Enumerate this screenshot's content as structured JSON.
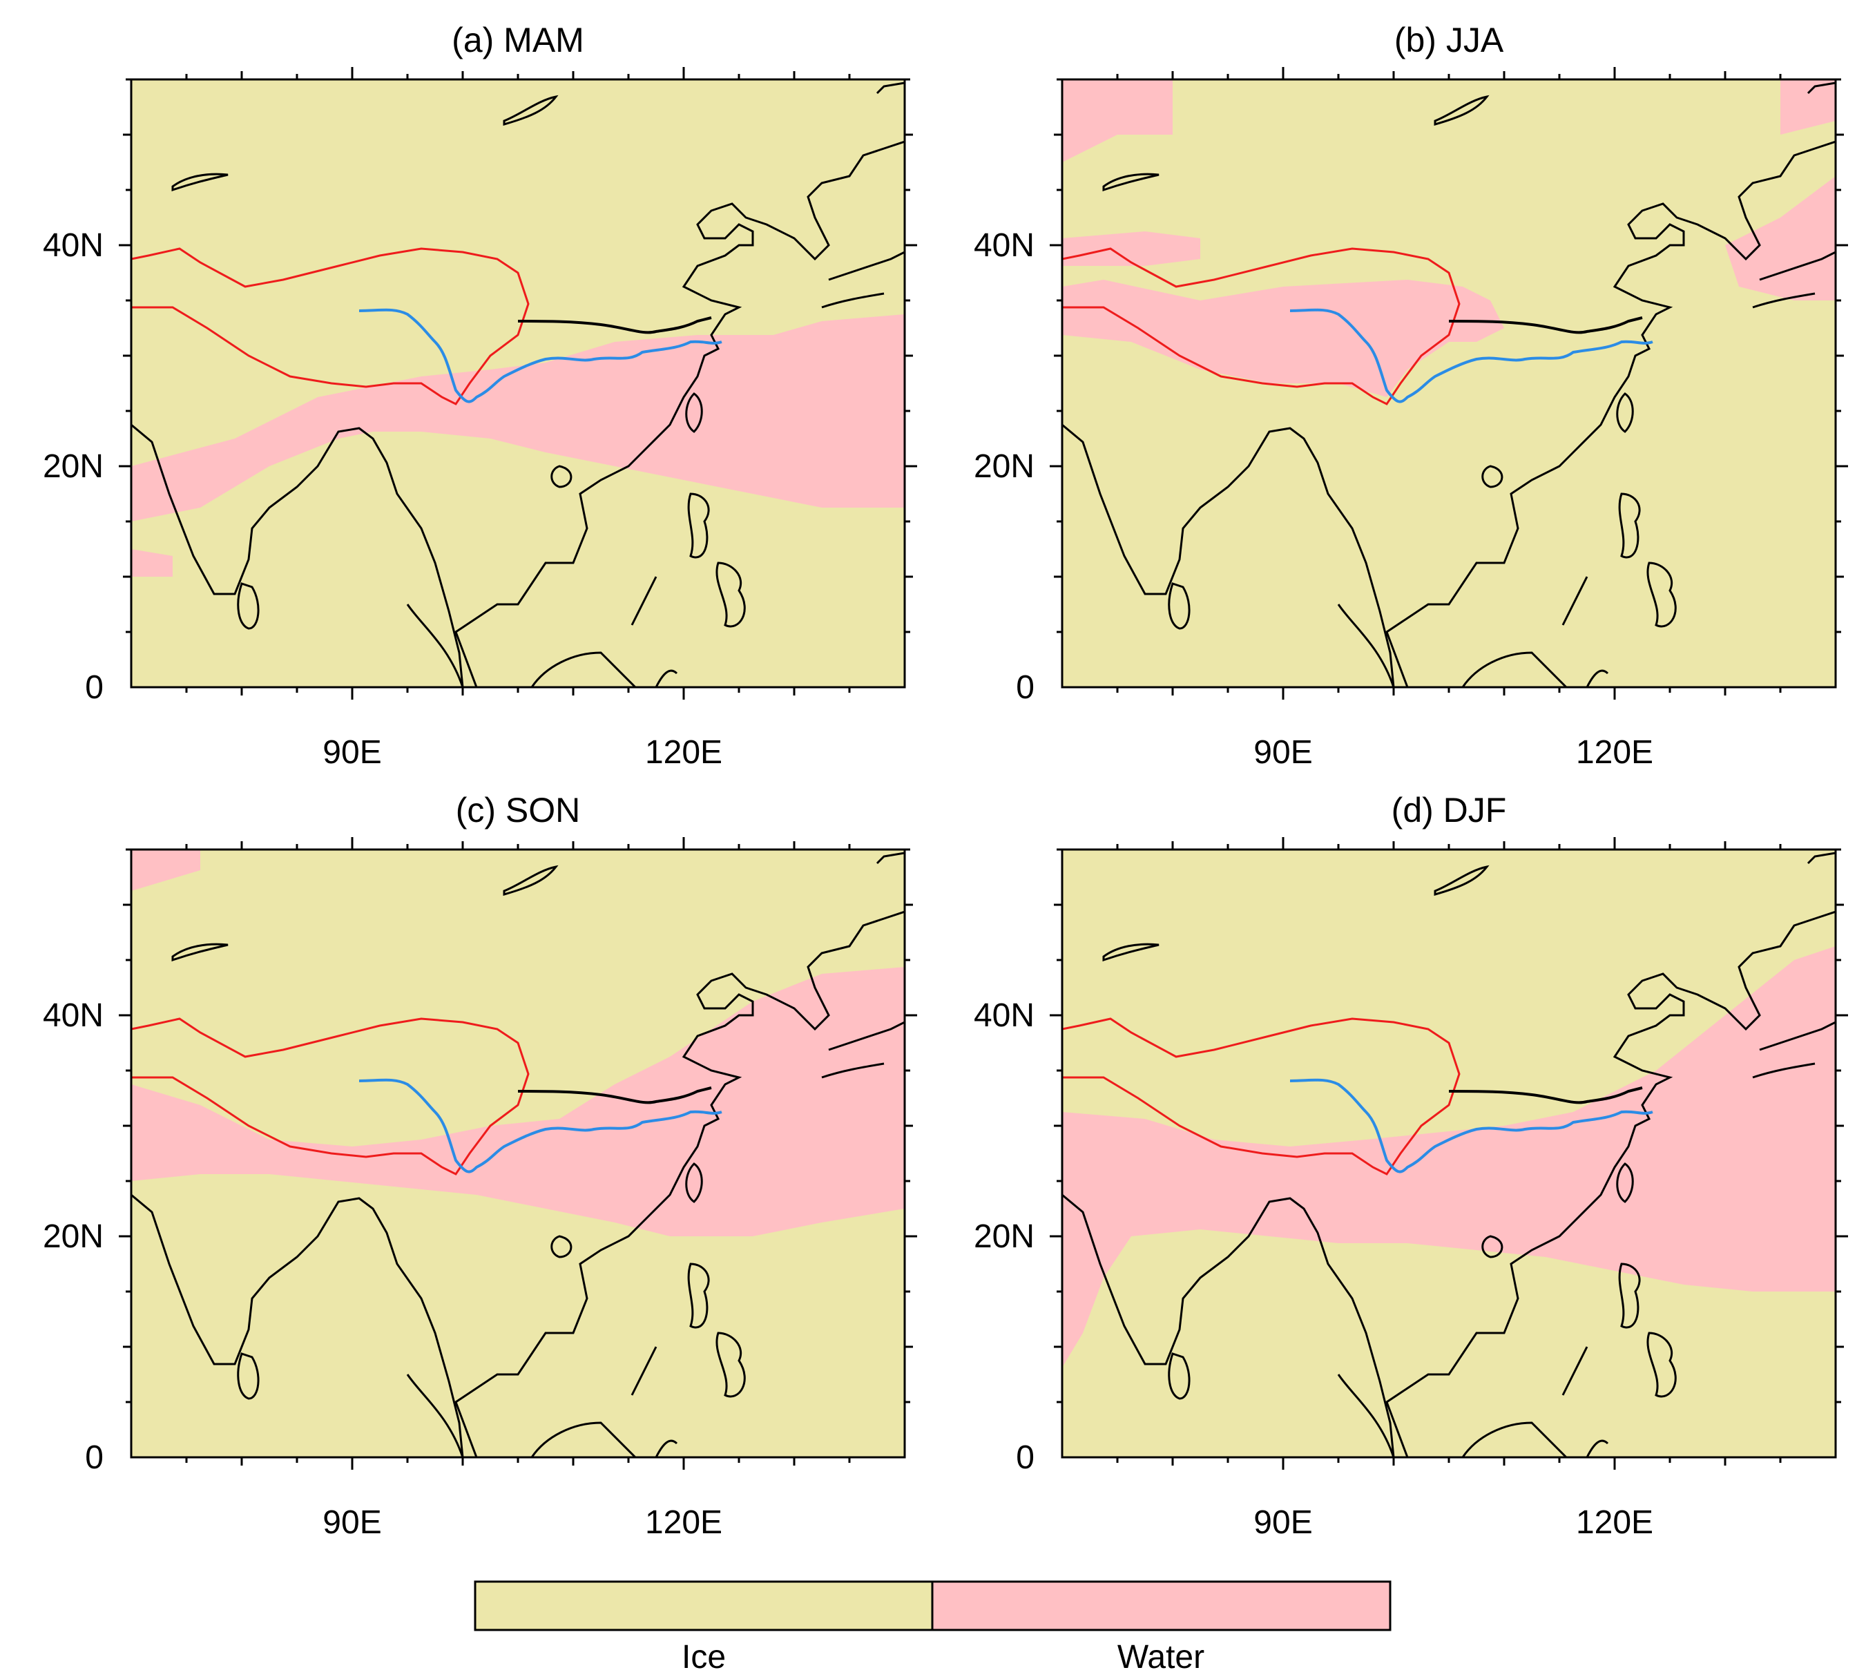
{
  "figure": {
    "panels": [
      {
        "id": "mam",
        "title": "(a) MAM"
      },
      {
        "id": "jja",
        "title": "(b) JJA"
      },
      {
        "id": "son",
        "title": "(c) SON"
      },
      {
        "id": "djf",
        "title": "(d) DJF"
      }
    ],
    "axes": {
      "x_ticks": [
        {
          "lon": 90,
          "label": "90E"
        },
        {
          "lon": 120,
          "label": "120E"
        }
      ],
      "y_ticks": [
        {
          "lat": 0,
          "label": "0"
        },
        {
          "lat": 20,
          "label": "20N"
        },
        {
          "lat": 40,
          "label": "40N"
        }
      ],
      "xlim": [
        70,
        140
      ],
      "ylim": [
        0,
        55
      ]
    },
    "legend": {
      "position": "bottom-center",
      "items": [
        {
          "label": "Ice",
          "color": "#ece7aa"
        },
        {
          "label": "Water",
          "color": "#ffc0c4"
        }
      ]
    },
    "colors": {
      "ice": "#ece7aa",
      "water": "#ffc0c4",
      "coastline": "#000000",
      "plateau_boundary": "#ee1c1c",
      "river_blue": "#2b8ce6",
      "river_black": "#000000"
    }
  }
}
